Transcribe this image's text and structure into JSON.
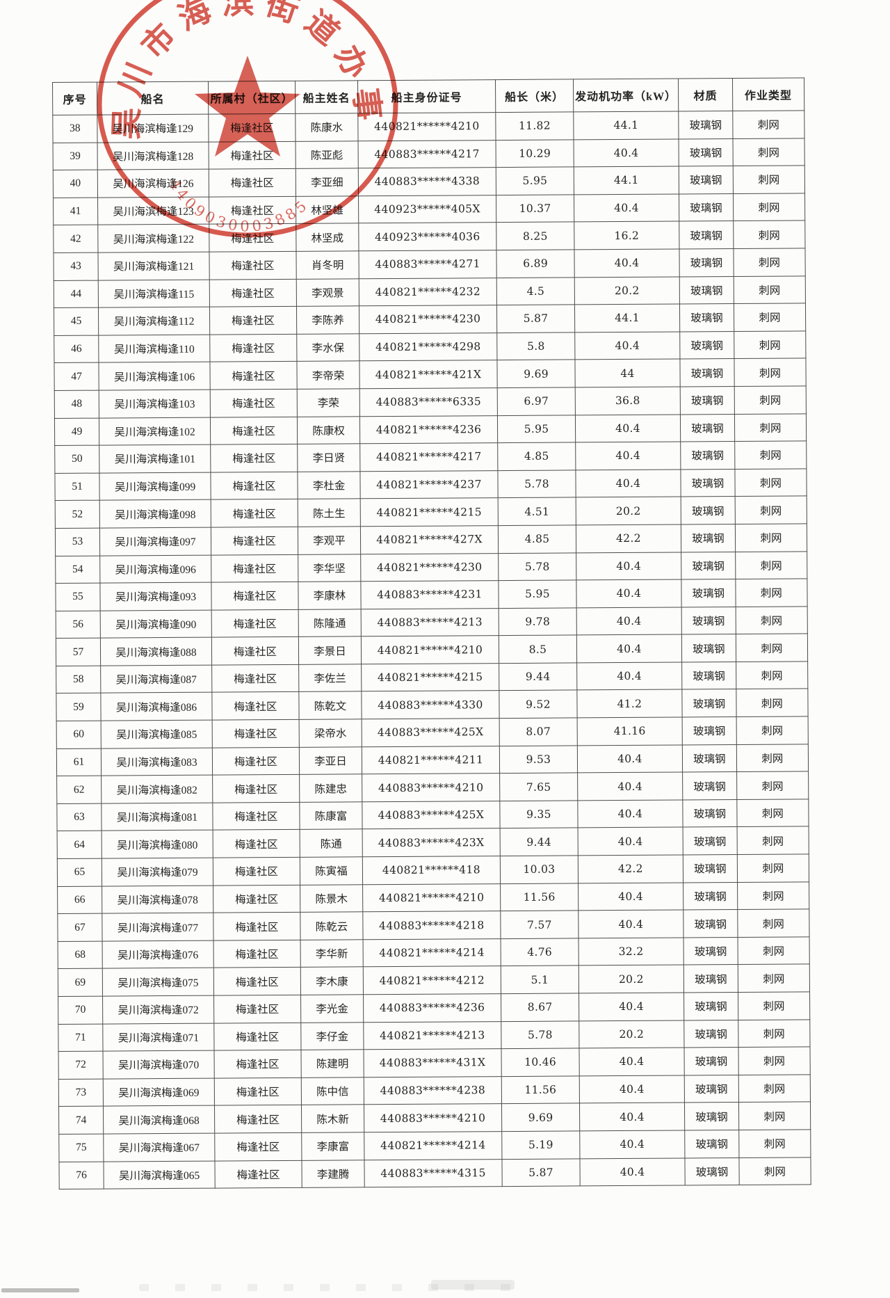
{
  "stamp": {
    "arc_text": "吴川市海滨街道办事处",
    "code": "4409030003885",
    "color": "#d23a2b"
  },
  "table": {
    "columns": [
      "序号",
      "船名",
      "所属村（社区）",
      "船主姓名",
      "船主身份证号",
      "船长（米）",
      "发动机功率（kW）",
      "材质",
      "作业类型"
    ],
    "rows": [
      [
        "38",
        "吴川海滨梅逢129",
        "梅逢社区",
        "陈康水",
        "440821******4210",
        "11.82",
        "44.1",
        "玻璃钢",
        "刺网"
      ],
      [
        "39",
        "吴川海滨梅逢128",
        "梅逢社区",
        "陈亚彪",
        "440883******4217",
        "10.29",
        "40.4",
        "玻璃钢",
        "刺网"
      ],
      [
        "40",
        "吴川海滨梅逢126",
        "梅逢社区",
        "李亚细",
        "440883******4338",
        "5.95",
        "44.1",
        "玻璃钢",
        "刺网"
      ],
      [
        "41",
        "吴川海滨梅逢123",
        "梅逢社区",
        "林坚雄",
        "440923******405X",
        "10.37",
        "40.4",
        "玻璃钢",
        "刺网"
      ],
      [
        "42",
        "吴川海滨梅逢122",
        "梅逢社区",
        "林坚成",
        "440923******4036",
        "8.25",
        "16.2",
        "玻璃钢",
        "刺网"
      ],
      [
        "43",
        "吴川海滨梅逢121",
        "梅逢社区",
        "肖冬明",
        "440883******4271",
        "6.89",
        "40.4",
        "玻璃钢",
        "刺网"
      ],
      [
        "44",
        "吴川海滨梅逢115",
        "梅逢社区",
        "李观景",
        "440821******4232",
        "4.5",
        "20.2",
        "玻璃钢",
        "刺网"
      ],
      [
        "45",
        "吴川海滨梅逢112",
        "梅逢社区",
        "李陈养",
        "440821******4230",
        "5.87",
        "44.1",
        "玻璃钢",
        "刺网"
      ],
      [
        "46",
        "吴川海滨梅逢110",
        "梅逢社区",
        "李水保",
        "440821******4298",
        "5.8",
        "40.4",
        "玻璃钢",
        "刺网"
      ],
      [
        "47",
        "吴川海滨梅逢106",
        "梅逢社区",
        "李帝荣",
        "440821******421X",
        "9.69",
        "44",
        "玻璃钢",
        "刺网"
      ],
      [
        "48",
        "吴川海滨梅逢103",
        "梅逢社区",
        "李荣",
        "440883******6335",
        "6.97",
        "36.8",
        "玻璃钢",
        "刺网"
      ],
      [
        "49",
        "吴川海滨梅逢102",
        "梅逢社区",
        "陈康权",
        "440821******4236",
        "5.95",
        "40.4",
        "玻璃钢",
        "刺网"
      ],
      [
        "50",
        "吴川海滨梅逢101",
        "梅逢社区",
        "李日贤",
        "440821******4217",
        "4.85",
        "40.4",
        "玻璃钢",
        "刺网"
      ],
      [
        "51",
        "吴川海滨梅逢099",
        "梅逢社区",
        "李杜金",
        "440821******4237",
        "5.78",
        "40.4",
        "玻璃钢",
        "刺网"
      ],
      [
        "52",
        "吴川海滨梅逢098",
        "梅逢社区",
        "陈土生",
        "440821******4215",
        "4.51",
        "20.2",
        "玻璃钢",
        "刺网"
      ],
      [
        "53",
        "吴川海滨梅逢097",
        "梅逢社区",
        "李观平",
        "440821******427X",
        "4.85",
        "42.2",
        "玻璃钢",
        "刺网"
      ],
      [
        "54",
        "吴川海滨梅逢096",
        "梅逢社区",
        "李华坚",
        "440821******4230",
        "5.78",
        "40.4",
        "玻璃钢",
        "刺网"
      ],
      [
        "55",
        "吴川海滨梅逢093",
        "梅逢社区",
        "李康林",
        "440883******4231",
        "5.95",
        "40.4",
        "玻璃钢",
        "刺网"
      ],
      [
        "56",
        "吴川海滨梅逢090",
        "梅逢社区",
        "陈隆通",
        "440883******4213",
        "9.78",
        "40.4",
        "玻璃钢",
        "刺网"
      ],
      [
        "57",
        "吴川海滨梅逢088",
        "梅逢社区",
        "李景日",
        "440821******4210",
        "8.5",
        "40.4",
        "玻璃钢",
        "刺网"
      ],
      [
        "58",
        "吴川海滨梅逢087",
        "梅逢社区",
        "李佐兰",
        "440821******4215",
        "9.44",
        "40.4",
        "玻璃钢",
        "刺网"
      ],
      [
        "59",
        "吴川海滨梅逢086",
        "梅逢社区",
        "陈乾文",
        "440883******4330",
        "9.52",
        "41.2",
        "玻璃钢",
        "刺网"
      ],
      [
        "60",
        "吴川海滨梅逢085",
        "梅逢社区",
        "梁帝水",
        "440883******425X",
        "8.07",
        "41.16",
        "玻璃钢",
        "刺网"
      ],
      [
        "61",
        "吴川海滨梅逢083",
        "梅逢社区",
        "李亚日",
        "440821******4211",
        "9.53",
        "40.4",
        "玻璃钢",
        "刺网"
      ],
      [
        "62",
        "吴川海滨梅逢082",
        "梅逢社区",
        "陈建忠",
        "440883******4210",
        "7.65",
        "40.4",
        "玻璃钢",
        "刺网"
      ],
      [
        "63",
        "吴川海滨梅逢081",
        "梅逢社区",
        "陈康富",
        "440883******425X",
        "9.35",
        "40.4",
        "玻璃钢",
        "刺网"
      ],
      [
        "64",
        "吴川海滨梅逢080",
        "梅逢社区",
        "陈通",
        "440883******423X",
        "9.44",
        "40.4",
        "玻璃钢",
        "刺网"
      ],
      [
        "65",
        "吴川海滨梅逢079",
        "梅逢社区",
        "陈寅福",
        "440821******418",
        "10.03",
        "42.2",
        "玻璃钢",
        "刺网"
      ],
      [
        "66",
        "吴川海滨梅逢078",
        "梅逢社区",
        "陈景木",
        "440821******4210",
        "11.56",
        "40.4",
        "玻璃钢",
        "刺网"
      ],
      [
        "67",
        "吴川海滨梅逢077",
        "梅逢社区",
        "陈乾云",
        "440883******4218",
        "7.57",
        "40.4",
        "玻璃钢",
        "刺网"
      ],
      [
        "68",
        "吴川海滨梅逢076",
        "梅逢社区",
        "李华新",
        "440821******4214",
        "4.76",
        "32.2",
        "玻璃钢",
        "刺网"
      ],
      [
        "69",
        "吴川海滨梅逢075",
        "梅逢社区",
        "李木康",
        "440821******4212",
        "5.1",
        "20.2",
        "玻璃钢",
        "刺网"
      ],
      [
        "70",
        "吴川海滨梅逢072",
        "梅逢社区",
        "李光金",
        "440883******4236",
        "8.67",
        "40.4",
        "玻璃钢",
        "刺网"
      ],
      [
        "71",
        "吴川海滨梅逢071",
        "梅逢社区",
        "李仔金",
        "440821******4213",
        "5.78",
        "20.2",
        "玻璃钢",
        "刺网"
      ],
      [
        "72",
        "吴川海滨梅逢070",
        "梅逢社区",
        "陈建明",
        "440883******431X",
        "10.46",
        "40.4",
        "玻璃钢",
        "刺网"
      ],
      [
        "73",
        "吴川海滨梅逢069",
        "梅逢社区",
        "陈中信",
        "440883******4238",
        "11.56",
        "40.4",
        "玻璃钢",
        "刺网"
      ],
      [
        "74",
        "吴川海滨梅逢068",
        "梅逢社区",
        "陈木新",
        "440883******4210",
        "9.69",
        "40.4",
        "玻璃钢",
        "刺网"
      ],
      [
        "75",
        "吴川海滨梅逢067",
        "梅逢社区",
        "李康富",
        "440821******4214",
        "5.19",
        "40.4",
        "玻璃钢",
        "刺网"
      ],
      [
        "76",
        "吴川海滨梅逢065",
        "梅逢社区",
        "李建腾",
        "440883******4315",
        "5.87",
        "40.4",
        "玻璃钢",
        "刺网"
      ]
    ]
  }
}
